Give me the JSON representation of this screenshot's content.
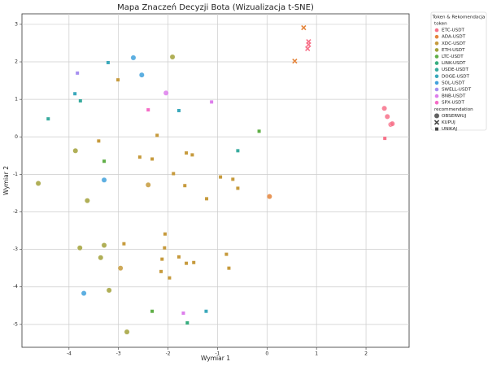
{
  "chart_data": {
    "type": "scatter",
    "title": "Mapa Znaczeń Decyzji Bota (Wizualizacja t-SNE)",
    "x_label": "Wymiar 1",
    "y_label": "Wymiar 2",
    "xlim": [
      -4.95,
      2.87
    ],
    "ylim": [
      -5.61,
      3.28
    ],
    "xticks": [
      -4,
      -3,
      -2,
      -1,
      0,
      1,
      2
    ],
    "yticks": [
      -5,
      -4,
      -3,
      -2,
      -1,
      0,
      1,
      2,
      3
    ],
    "grid": true,
    "legend": {
      "title": "Token & Rekomendacja",
      "hue_title": "token",
      "style_title": "recommendation",
      "position": "right"
    },
    "recommendations": [
      "OBSERWUJ",
      "KUPUJ",
      "UNIKAJ"
    ],
    "series": [
      {
        "name": "ETC-USDT",
        "color": "#f77189",
        "x": [
          2.37,
          2.43,
          2.5,
          2.53,
          2.38,
          0.84,
          0.84,
          0.82
        ],
        "y": [
          0.76,
          0.54,
          0.33,
          0.35,
          -0.04,
          2.54,
          2.46,
          2.35
        ],
        "style": [
          0,
          0,
          0,
          0,
          2,
          1,
          1,
          1
        ]
      },
      {
        "name": "ADA-USDT",
        "color": "#e4843a",
        "x": [
          0.74,
          0.56,
          0.05
        ],
        "y": [
          2.91,
          2.02,
          -1.59
        ],
        "style": [
          1,
          1,
          0
        ]
      },
      {
        "name": "XDC-USDT",
        "color": "#c69a3c",
        "x": [
          -3.01,
          -2.22,
          -3.4,
          -2.57,
          -2.32,
          -1.63,
          -1.51,
          -1.89,
          -1.66,
          -0.94,
          -0.69,
          -0.59,
          -1.22,
          -2.06,
          -2.89,
          -2.07,
          -1.78,
          -1.48,
          -2.12,
          -1.63,
          -0.82,
          -0.77,
          -2.14,
          -1.97,
          -2.4,
          -2.96
        ],
        "y": [
          1.52,
          0.04,
          -0.11,
          -0.54,
          -0.59,
          -0.43,
          -0.48,
          -0.98,
          -1.3,
          -1.07,
          -1.13,
          -1.37,
          -1.65,
          -2.59,
          -2.85,
          -2.96,
          -3.2,
          -3.35,
          -3.26,
          -3.37,
          -3.13,
          -3.5,
          -3.59,
          -3.76,
          -1.28,
          -3.5
        ],
        "style": [
          2,
          2,
          2,
          2,
          2,
          2,
          2,
          2,
          2,
          2,
          2,
          2,
          2,
          2,
          2,
          2,
          2,
          2,
          2,
          2,
          2,
          2,
          2,
          2,
          0,
          0
        ]
      },
      {
        "name": "ETH-USDT",
        "color": "#a2a13a",
        "x": [
          -1.91,
          -3.87,
          -4.62,
          -3.63,
          -3.78,
          -3.29,
          -3.36,
          -3.19,
          -2.83
        ],
        "y": [
          2.13,
          -0.37,
          -1.24,
          -1.7,
          -2.96,
          -2.89,
          -3.22,
          -4.09,
          -5.2
        ],
        "style": [
          0,
          0,
          0,
          0,
          0,
          0,
          0,
          0,
          0
        ]
      },
      {
        "name": "LTC-USDT",
        "color": "#5fae46",
        "x": [
          -3.29,
          -0.16,
          -2.32
        ],
        "y": [
          -0.65,
          0.15,
          -4.65
        ],
        "style": [
          2,
          2,
          2
        ]
      },
      {
        "name": "LINK-USDT",
        "color": "#36ad7e",
        "x": [
          -1.61
        ],
        "y": [
          -4.96
        ],
        "style": [
          2
        ]
      },
      {
        "name": "USDE-USDT",
        "color": "#38ab9e",
        "x": [
          -4.42,
          -3.77,
          -0.59
        ],
        "y": [
          0.48,
          0.96,
          -0.37
        ],
        "style": [
          2,
          2,
          2
        ]
      },
      {
        "name": "DOGE-USDT",
        "color": "#3aa8bb",
        "x": [
          -3.21,
          -3.88,
          -1.78,
          -1.23
        ],
        "y": [
          1.98,
          1.15,
          0.7,
          -4.65
        ],
        "style": [
          2,
          2,
          2,
          2
        ]
      },
      {
        "name": "SOL-USDT",
        "color": "#41a1dc",
        "x": [
          -2.7,
          -2.53,
          -3.29,
          -3.7
        ],
        "y": [
          2.11,
          1.65,
          -1.15,
          -4.17
        ],
        "style": [
          0,
          0,
          0,
          0
        ]
      },
      {
        "name": "SWELL-USDT",
        "color": "#a68ff0",
        "x": [
          -3.83
        ],
        "y": [
          1.7
        ],
        "style": [
          2
        ]
      },
      {
        "name": "BNB-USDT",
        "color": "#dd7eec",
        "x": [
          -2.04,
          -1.12,
          -1.69
        ],
        "y": [
          1.17,
          0.93,
          -4.7
        ],
        "style": [
          0,
          2,
          2
        ]
      },
      {
        "name": "SPX-USDT",
        "color": "#f56bc6",
        "x": [
          -2.4
        ],
        "y": [
          0.72
        ],
        "style": [
          2
        ]
      }
    ]
  }
}
